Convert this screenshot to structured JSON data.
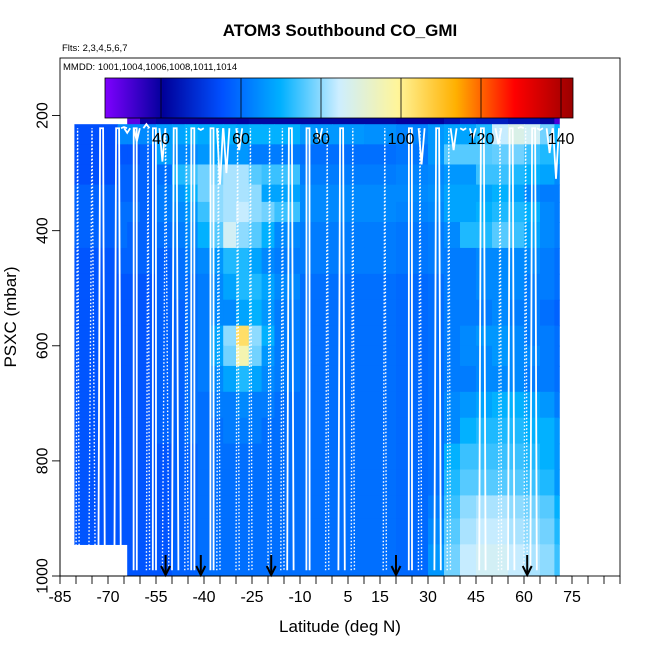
{
  "chart_data": {
    "type": "heatmap",
    "title": "ATOM3 Southbound CO_GMI",
    "flights_label": "Flts: 2,3,4,5,6,7",
    "dates_label": "MMDD: 1001,1004,1006,1008,1011,1014",
    "xlabel": "Latitude (deg N)",
    "ylabel": "PSXC (mbar)",
    "xlim": [
      -85,
      90
    ],
    "ylim": [
      1000,
      100
    ],
    "x_ticks": [
      "-85",
      "-70",
      "-55",
      "-40",
      "-25",
      "-10",
      "5",
      "15",
      "30",
      "45",
      "60",
      "75"
    ],
    "x_tick_values": [
      -85,
      -70,
      -55,
      -40,
      -25,
      -10,
      5,
      15,
      30,
      45,
      60,
      75
    ],
    "y_ticks": [
      "200",
      "400",
      "600",
      "800",
      "1000"
    ],
    "y_tick_values": [
      200,
      400,
      600,
      800,
      1000
    ],
    "colorbar": {
      "range": [
        26,
        143
      ],
      "ticks": [
        "40",
        "60",
        "80",
        "100",
        "120",
        "140"
      ],
      "tick_values": [
        40,
        60,
        80,
        100,
        120,
        140
      ],
      "colors": [
        "#7f00ff",
        "#00009a",
        "#0050ff",
        "#00b0ff",
        "#cdeeff",
        "#fff59a",
        "#ffb000",
        "#ff0000",
        "#9a0000"
      ]
    },
    "arrow_latitudes": [
      -52,
      -41,
      -19,
      20,
      61
    ],
    "field": {
      "lat_edges": [
        -80.5,
        -67,
        -64,
        -60,
        -55,
        -50,
        -46,
        -42,
        -38,
        -34,
        -30,
        -26,
        -22,
        -18,
        -10,
        0,
        10,
        20,
        30,
        35,
        40,
        45,
        50,
        55,
        60,
        65,
        69.5,
        71
      ],
      "p_edges": [
        170,
        215,
        250,
        285,
        320,
        350,
        385,
        430,
        475,
        520,
        565,
        600,
        635,
        680,
        725,
        770,
        815,
        860,
        900,
        945,
        1000
      ],
      "values": [
        [
          null,
          null,
          30,
          39,
          41,
          40,
          40,
          40,
          40,
          40,
          41,
          42,
          42,
          42,
          42,
          42,
          42,
          40,
          41,
          44,
          47,
          46,
          46,
          44,
          44,
          42,
          32
        ],
        [
          55,
          64,
          64,
          64,
          67,
          68,
          70,
          69,
          70,
          70,
          69,
          70,
          70,
          70,
          66,
          66,
          65,
          63,
          66,
          68,
          68,
          72,
          84,
          88,
          86,
          78,
          70
        ],
        [
          55,
          56,
          56,
          58,
          67,
          64,
          64,
          66,
          68,
          66,
          66,
          62,
          62,
          62,
          60,
          60,
          60,
          61,
          66,
          76,
          76,
          76,
          77,
          78,
          74,
          72,
          68
        ],
        [
          55,
          58,
          58,
          58,
          60,
          72,
          74,
          78,
          78,
          82,
          82,
          76,
          74,
          74,
          62,
          62,
          62,
          63,
          64,
          66,
          66,
          74,
          74,
          72,
          70,
          68,
          64
        ],
        [
          58,
          58,
          58,
          58,
          62,
          66,
          70,
          78,
          80,
          82,
          82,
          80,
          68,
          68,
          64,
          64,
          64,
          64,
          65,
          68,
          68,
          68,
          70,
          68,
          64,
          62,
          62
        ],
        [
          58,
          60,
          60,
          58,
          62,
          64,
          66,
          74,
          80,
          82,
          84,
          80,
          78,
          74,
          64,
          64,
          64,
          63,
          64,
          68,
          68,
          70,
          72,
          72,
          70,
          64,
          62
        ],
        [
          58,
          60,
          58,
          58,
          60,
          62,
          64,
          70,
          76,
          86,
          80,
          76,
          70,
          64,
          62,
          62,
          62,
          61,
          62,
          64,
          72,
          72,
          76,
          74,
          68,
          64,
          62
        ],
        [
          56,
          58,
          58,
          58,
          58,
          60,
          62,
          64,
          66,
          72,
          72,
          68,
          64,
          62,
          62,
          62,
          62,
          61,
          62,
          62,
          62,
          64,
          64,
          64,
          64,
          62,
          60
        ],
        [
          56,
          56,
          56,
          56,
          58,
          60,
          60,
          62,
          64,
          68,
          72,
          72,
          68,
          64,
          60,
          60,
          60,
          59,
          60,
          62,
          62,
          64,
          64,
          64,
          62,
          62,
          60
        ],
        [
          56,
          56,
          56,
          56,
          58,
          58,
          60,
          62,
          64,
          64,
          68,
          70,
          66,
          62,
          60,
          60,
          60,
          59,
          60,
          62,
          62,
          62,
          64,
          62,
          62,
          60,
          58
        ],
        [
          56,
          56,
          56,
          56,
          58,
          58,
          60,
          62,
          68,
          80,
          104,
          80,
          70,
          62,
          60,
          60,
          60,
          59,
          60,
          62,
          64,
          66,
          66,
          64,
          62,
          62,
          60
        ],
        [
          56,
          56,
          56,
          56,
          58,
          58,
          60,
          62,
          68,
          78,
          96,
          78,
          66,
          62,
          60,
          60,
          60,
          59,
          60,
          62,
          64,
          64,
          66,
          64,
          64,
          62,
          60
        ],
        [
          56,
          56,
          56,
          56,
          58,
          58,
          60,
          62,
          64,
          68,
          72,
          68,
          64,
          62,
          60,
          60,
          60,
          59,
          60,
          62,
          62,
          64,
          64,
          64,
          62,
          62,
          60
        ],
        [
          56,
          56,
          56,
          56,
          58,
          58,
          60,
          60,
          62,
          62,
          64,
          62,
          62,
          60,
          60,
          60,
          60,
          59,
          60,
          64,
          66,
          68,
          70,
          70,
          68,
          66,
          62
        ],
        [
          56,
          56,
          56,
          56,
          58,
          58,
          60,
          60,
          60,
          62,
          62,
          62,
          60,
          60,
          60,
          60,
          60,
          59,
          60,
          64,
          70,
          72,
          72,
          72,
          70,
          70,
          66
        ],
        [
          56,
          56,
          56,
          56,
          56,
          58,
          58,
          60,
          60,
          60,
          60,
          60,
          60,
          60,
          60,
          60,
          60,
          59,
          60,
          70,
          74,
          74,
          74,
          74,
          72,
          70,
          66
        ],
        [
          56,
          56,
          56,
          56,
          56,
          58,
          58,
          60,
          60,
          60,
          60,
          60,
          60,
          60,
          60,
          60,
          60,
          59,
          60,
          72,
          76,
          76,
          76,
          76,
          74,
          72,
          66
        ],
        [
          56,
          56,
          56,
          56,
          56,
          58,
          58,
          60,
          60,
          60,
          60,
          60,
          60,
          60,
          60,
          60,
          60,
          59,
          62,
          74,
          80,
          82,
          82,
          80,
          78,
          76,
          70
        ],
        [
          56,
          56,
          56,
          56,
          56,
          58,
          58,
          60,
          60,
          60,
          60,
          60,
          60,
          60,
          60,
          60,
          60,
          59,
          64,
          76,
          82,
          84,
          84,
          82,
          80,
          78,
          72
        ],
        [
          null,
          null,
          56,
          56,
          56,
          58,
          58,
          60,
          60,
          60,
          60,
          60,
          60,
          60,
          60,
          60,
          60,
          59,
          66,
          78,
          84,
          86,
          86,
          84,
          82,
          80,
          74
        ]
      ]
    },
    "flight_profiles": {
      "closed": [
        [
          -73,
          -71
        ],
        [
          -68,
          -66
        ],
        [
          -62,
          -61
        ],
        [
          -56,
          -55
        ],
        [
          -50,
          -48
        ],
        [
          -44,
          -43
        ],
        [
          -38,
          -37
        ],
        [
          -14,
          -12
        ],
        [
          -8,
          -7
        ],
        [
          2,
          4
        ],
        [
          24,
          25
        ],
        [
          32,
          34
        ],
        [
          46,
          48
        ],
        [
          55,
          57
        ],
        [
          62,
          64
        ]
      ],
      "open": [
        [
          -65,
          220
        ],
        [
          -64,
          230
        ],
        [
          -61,
          245
        ],
        [
          -58,
          215
        ],
        [
          -53,
          280
        ],
        [
          -41,
          225
        ],
        [
          -35,
          320
        ],
        [
          -33,
          300
        ],
        [
          -29,
          260
        ],
        [
          -4,
          245
        ],
        [
          28,
          285
        ],
        [
          38,
          260
        ],
        [
          41,
          225
        ],
        [
          44,
          240
        ],
        [
          52,
          250
        ],
        [
          59,
          220
        ],
        [
          65,
          225
        ],
        [
          68,
          265
        ],
        [
          70,
          310
        ]
      ],
      "dotted": [
        [
          -80,
          -79
        ],
        [
          -76,
          -74
        ],
        [
          -58,
          -57
        ],
        [
          -53,
          -51
        ],
        [
          -46,
          -45
        ],
        [
          -36,
          -35
        ],
        [
          -30,
          -29
        ],
        [
          -26,
          -25
        ],
        [
          -20,
          -19
        ],
        [
          -16,
          -15
        ],
        [
          -2,
          -1
        ],
        [
          6,
          7
        ],
        [
          16,
          17
        ],
        [
          27,
          28
        ],
        [
          36,
          37
        ],
        [
          52,
          53
        ],
        [
          60,
          61
        ]
      ]
    }
  }
}
